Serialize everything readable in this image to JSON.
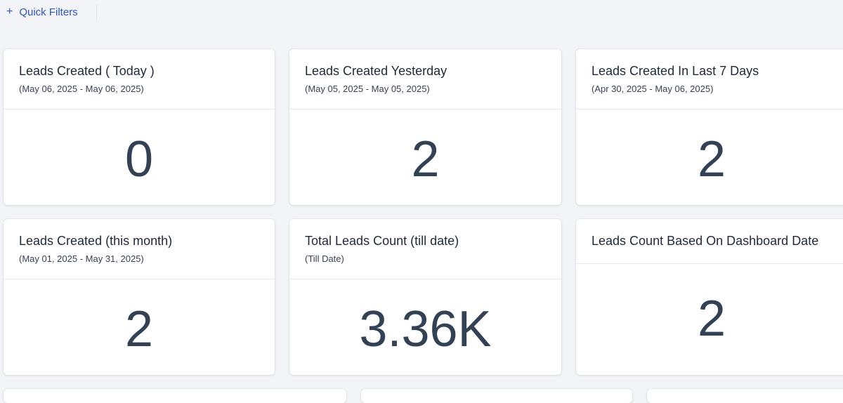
{
  "toolbar": {
    "quick_filters_label": "Quick Filters"
  },
  "cards": [
    {
      "title": "Leads Created ( Today )",
      "subtitle": "(May 06, 2025 - May 06, 2025)",
      "value": "0"
    },
    {
      "title": "Leads Created Yesterday",
      "subtitle": "(May 05, 2025 - May 05, 2025)",
      "value": "2"
    },
    {
      "title": "Leads Created In Last 7 Days",
      "subtitle": "(Apr 30, 2025 - May 06, 2025)",
      "value": "2"
    },
    {
      "title": "Leads Created (this month)",
      "subtitle": "(May 01, 2025 - May 31, 2025)",
      "value": "2"
    },
    {
      "title": "Total Leads Count (till date)",
      "subtitle": "(Till Date)",
      "value": "3.36K"
    },
    {
      "title": "Leads Count Based On Dashboard Date",
      "subtitle": "",
      "value": "2"
    }
  ],
  "colors": {
    "accent": "#2f55c7",
    "background": "#f3f4f7",
    "card": "#ffffff",
    "value_text": "#334155"
  }
}
